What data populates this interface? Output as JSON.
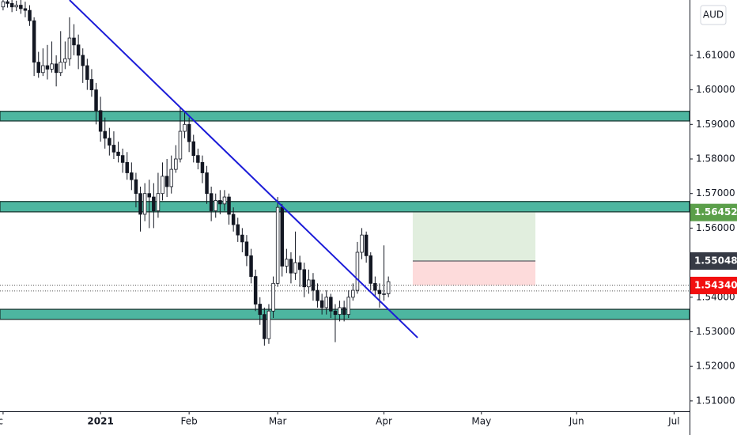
{
  "chart_data": {
    "type": "candlestick",
    "currency": "AUD",
    "x": [
      -22,
      -21,
      -20,
      -19,
      -18,
      -17,
      -16,
      -15,
      -14,
      -13,
      -12,
      -11,
      -10,
      -9,
      -8,
      -7,
      -6,
      -5,
      -4,
      -3,
      -2,
      -1,
      0,
      1,
      2,
      3,
      4,
      5,
      6,
      7,
      8,
      9,
      10,
      11,
      12,
      13,
      14,
      15,
      16,
      17,
      18,
      19,
      20,
      21,
      22,
      23,
      24,
      25,
      26,
      27,
      28,
      29,
      30,
      31,
      32,
      33,
      34,
      35,
      36,
      37,
      38,
      39,
      40,
      41,
      42,
      43,
      44,
      45,
      46,
      47,
      48,
      49,
      50,
      51,
      52,
      53,
      54,
      55,
      56,
      57,
      58,
      59,
      60,
      61,
      62,
      63,
      64,
      65
    ],
    "ohlc": [
      [
        1.624,
        1.6265,
        1.623,
        1.6255
      ],
      [
        1.6255,
        1.6268,
        1.6238,
        1.625
      ],
      [
        1.625,
        1.6262,
        1.6225,
        1.624
      ],
      [
        1.624,
        1.6258,
        1.6228,
        1.6245
      ],
      [
        1.6245,
        1.626,
        1.622,
        1.6235
      ],
      [
        1.6235,
        1.6255,
        1.621,
        1.623
      ],
      [
        1.623,
        1.6245,
        1.6185,
        1.62
      ],
      [
        1.62,
        1.621,
        1.604,
        1.608
      ],
      [
        1.608,
        1.611,
        1.6035,
        1.605
      ],
      [
        1.605,
        1.612,
        1.604,
        1.607
      ],
      [
        1.607,
        1.613,
        1.603,
        1.606
      ],
      [
        1.606,
        1.614,
        1.605,
        1.6075
      ],
      [
        1.6075,
        1.61,
        1.601,
        1.605
      ],
      [
        1.605,
        1.617,
        1.604,
        1.608
      ],
      [
        1.608,
        1.614,
        1.606,
        1.609
      ],
      [
        1.609,
        1.621,
        1.607,
        1.615
      ],
      [
        1.615,
        1.619,
        1.61,
        1.613
      ],
      [
        1.613,
        1.616,
        1.606,
        1.61
      ],
      [
        1.61,
        1.612,
        1.602,
        1.607
      ],
      [
        1.607,
        1.609,
        1.6,
        1.603
      ],
      [
        1.603,
        1.606,
        1.598,
        1.6
      ],
      [
        1.6,
        1.602,
        1.59,
        1.594
      ],
      [
        1.594,
        1.598,
        1.585,
        1.588
      ],
      [
        1.588,
        1.592,
        1.583,
        1.586
      ],
      [
        1.586,
        1.589,
        1.581,
        1.584
      ],
      [
        1.584,
        1.588,
        1.58,
        1.582
      ],
      [
        1.582,
        1.585,
        1.579,
        1.581
      ],
      [
        1.581,
        1.583,
        1.576,
        1.579
      ],
      [
        1.579,
        1.582,
        1.574,
        1.576
      ],
      [
        1.576,
        1.579,
        1.571,
        1.574
      ],
      [
        1.574,
        1.576,
        1.566,
        1.57
      ],
      [
        1.57,
        1.572,
        1.559,
        1.564
      ],
      [
        1.564,
        1.573,
        1.562,
        1.57
      ],
      [
        1.57,
        1.574,
        1.56,
        1.569
      ],
      [
        1.569,
        1.573,
        1.56,
        1.565
      ],
      [
        1.565,
        1.576,
        1.563,
        1.57
      ],
      [
        1.57,
        1.579,
        1.568,
        1.575
      ],
      [
        1.575,
        1.58,
        1.569,
        1.572
      ],
      [
        1.572,
        1.581,
        1.57,
        1.577
      ],
      [
        1.577,
        1.584,
        1.576,
        1.58
      ],
      [
        1.58,
        1.595,
        1.579,
        1.588
      ],
      [
        1.588,
        1.594,
        1.586,
        1.59
      ],
      [
        1.59,
        1.592,
        1.582,
        1.585
      ],
      [
        1.585,
        1.587,
        1.579,
        1.581
      ],
      [
        1.581,
        1.583,
        1.577,
        1.579
      ],
      [
        1.579,
        1.581,
        1.573,
        1.576
      ],
      [
        1.576,
        1.578,
        1.567,
        1.57
      ],
      [
        1.57,
        1.572,
        1.562,
        1.565
      ],
      [
        1.565,
        1.57,
        1.563,
        1.568
      ],
      [
        1.568,
        1.571,
        1.564,
        1.567
      ],
      [
        1.567,
        1.571,
        1.565,
        1.569
      ],
      [
        1.569,
        1.57,
        1.561,
        1.564
      ],
      [
        1.564,
        1.566,
        1.559,
        1.561
      ],
      [
        1.561,
        1.563,
        1.556,
        1.558
      ],
      [
        1.558,
        1.56,
        1.553,
        1.556
      ],
      [
        1.556,
        1.558,
        1.549,
        1.552
      ],
      [
        1.552,
        1.554,
        1.544,
        1.546
      ],
      [
        1.546,
        1.548,
        1.536,
        1.538
      ],
      [
        1.538,
        1.54,
        1.532,
        1.535
      ],
      [
        1.535,
        1.537,
        1.526,
        1.528
      ],
      [
        1.528,
        1.538,
        1.5265,
        1.536
      ],
      [
        1.536,
        1.546,
        1.534,
        1.544
      ],
      [
        1.544,
        1.569,
        1.543,
        1.566
      ],
      [
        1.566,
        1.567,
        1.546,
        1.549
      ],
      [
        1.549,
        1.554,
        1.547,
        1.551
      ],
      [
        1.551,
        1.553,
        1.544,
        1.547
      ],
      [
        1.547,
        1.559,
        1.545,
        1.55
      ],
      [
        1.55,
        1.552,
        1.543,
        1.548
      ],
      [
        1.548,
        1.55,
        1.54,
        1.543
      ],
      [
        1.543,
        1.548,
        1.541,
        1.545
      ],
      [
        1.545,
        1.547,
        1.539,
        1.542
      ],
      [
        1.542,
        1.544,
        1.537,
        1.539
      ],
      [
        1.539,
        1.541,
        1.535,
        1.537
      ],
      [
        1.537,
        1.542,
        1.535,
        1.54
      ],
      [
        1.54,
        1.541,
        1.534,
        1.536
      ],
      [
        1.536,
        1.538,
        1.527,
        1.535
      ],
      [
        1.535,
        1.539,
        1.533,
        1.537
      ],
      [
        1.537,
        1.539,
        1.533,
        1.535
      ],
      [
        1.535,
        1.542,
        1.534,
        1.54
      ],
      [
        1.54,
        1.544,
        1.539,
        1.542
      ],
      [
        1.542,
        1.556,
        1.541,
        1.553
      ],
      [
        1.553,
        1.56,
        1.551,
        1.558
      ],
      [
        1.558,
        1.559,
        1.55,
        1.552
      ],
      [
        1.552,
        1.553,
        1.542,
        1.544
      ],
      [
        1.544,
        1.546,
        1.54,
        1.542
      ],
      [
        1.542,
        1.544,
        1.537,
        1.541
      ],
      [
        1.541,
        1.555,
        1.539,
        1.541
      ],
      [
        1.541,
        1.546,
        1.54,
        1.5445
      ]
    ],
    "up_color": "#ffffff",
    "down_color": "#131722",
    "xlim": [
      -22.7,
      133
    ],
    "xticks": [
      {
        "value": -22,
        "label": "ec"
      },
      {
        "value": 0,
        "label": "2021"
      },
      {
        "value": 20,
        "label": "Feb"
      },
      {
        "value": 40,
        "label": "Mar"
      },
      {
        "value": 64,
        "label": "Apr"
      },
      {
        "value": 86,
        "label": "May"
      },
      {
        "value": 107.5,
        "label": "Jun"
      },
      {
        "value": 129.5,
        "label": "Jul"
      }
    ],
    "ylim": [
      1.507,
      1.626
    ],
    "yticks": [
      {
        "value": 1.51,
        "label": "1.51000"
      },
      {
        "value": 1.52,
        "label": "1.52000"
      },
      {
        "value": 1.53,
        "label": "1.53000"
      },
      {
        "value": 1.54,
        "label": "1.54000"
      },
      {
        "value": 1.55,
        "label": "1.55000"
      },
      {
        "value": 1.56,
        "label": "1.56000"
      },
      {
        "value": 1.57,
        "label": "1.57000"
      },
      {
        "value": 1.58,
        "label": "1.58000"
      },
      {
        "value": 1.59,
        "label": "1.59000"
      },
      {
        "value": 1.6,
        "label": "1.60000"
      },
      {
        "value": 1.61,
        "label": "1.61000"
      }
    ],
    "zones": [
      {
        "from": 1.5938,
        "to": 1.591
      },
      {
        "from": 1.5677,
        "to": 1.5647
      },
      {
        "from": 1.5365,
        "to": 1.5336
      }
    ],
    "zone_color": "#4db6a0",
    "trendline": {
      "x": [
        -7,
        71.6
      ],
      "y": [
        1.626,
        1.5283
      ],
      "color": "#1b1bd8"
    },
    "price_lines": [
      1.5435,
      1.5418
    ],
    "position": {
      "x": [
        70.5,
        98.2
      ],
      "target": 1.56452,
      "entry": 1.55048,
      "stop": {
        "value": 1.5434,
        "label": "1.54340"
      },
      "target_color": "#5b9f4a",
      "entry_color": "#363a45",
      "stop_color": "#f20f0f"
    }
  }
}
